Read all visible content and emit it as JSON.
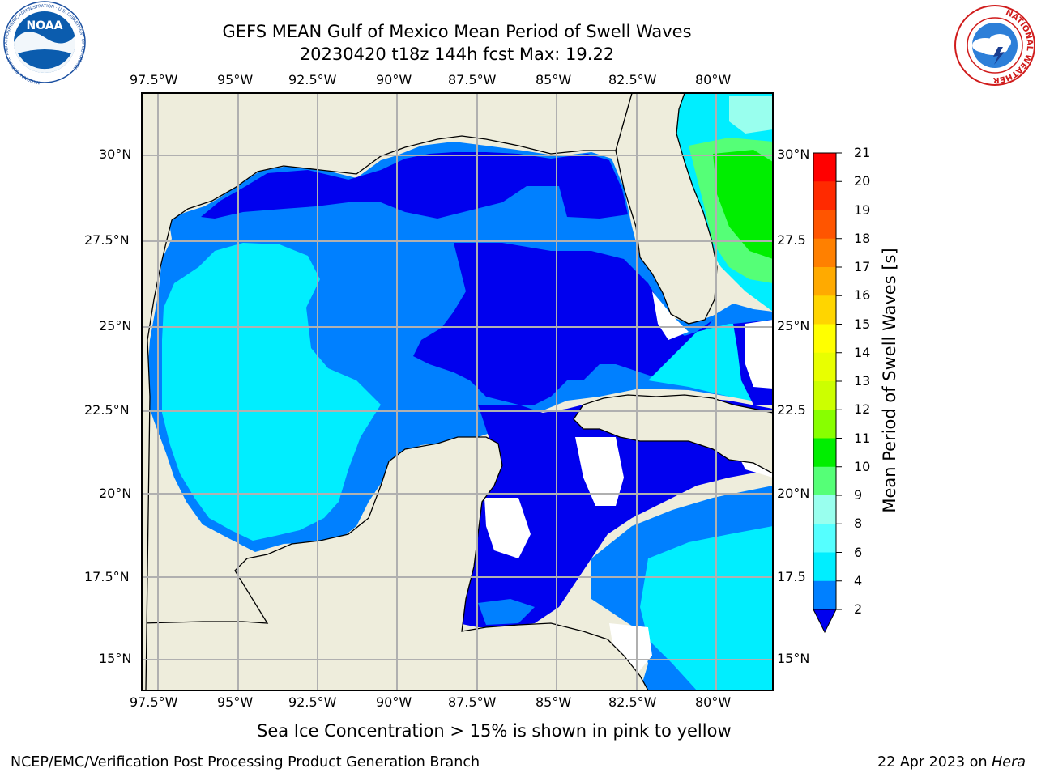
{
  "header": {
    "title_line1": "GEFS MEAN Gulf of Mexico Mean Period of Swell Waves",
    "title_line2": "20230420 t18z 144h fcst   Max: 19.22"
  },
  "logos": {
    "noaa_text": "NOAA",
    "noaa_ring_text": "NATIONAL OCEANIC AND ATMOSPHERIC ADMINISTRATION · U.S. DEPARTMENT OF COMMERCE",
    "nws_ring_text": "NATIONAL WEATHER SERVICE"
  },
  "map": {
    "lon_labels": [
      "97.5°W",
      "95°W",
      "92.5°W",
      "90°W",
      "87.5°W",
      "85°W",
      "82.5°W",
      "80°W"
    ],
    "lat_labels_left": [
      "30°N",
      "27.5°N",
      "25°N",
      "22.5°N",
      "20°N",
      "17.5°N",
      "15°N"
    ],
    "lat_labels_right": [
      "30°N",
      "27.5",
      "25°N",
      "22.5",
      "20°N",
      "17.5",
      "15°N"
    ],
    "colors": {
      "land": "#eeeddc",
      "ocean_dark": "#0000ee",
      "grid": "#b0b0b0"
    }
  },
  "colorbar": {
    "label": "Mean Period of Swell Waves [s]",
    "ticks": [
      "21",
      "20",
      "19",
      "18",
      "17",
      "16",
      "15",
      "14",
      "13",
      "12",
      "11",
      "10",
      "9",
      "8",
      "6",
      "4",
      "2"
    ],
    "colors": [
      "#ff0000",
      "#ff2a00",
      "#ff5500",
      "#ff8000",
      "#ffaa00",
      "#ffd500",
      "#ffff00",
      "#e8ff00",
      "#ccff00",
      "#88ff00",
      "#00ee00",
      "#55ff77",
      "#99ffee",
      "#55ffff",
      "#00eeff",
      "#0080ff"
    ],
    "extend_color": "#0000ee"
  },
  "notes": {
    "sea_ice": "Sea Ice Concentration > 15% is shown in pink to yellow"
  },
  "footer": {
    "left": "NCEP/EMC/Verification Post Processing Product Generation Branch",
    "date": "22 Apr 2023 on",
    "host": "Hera"
  }
}
